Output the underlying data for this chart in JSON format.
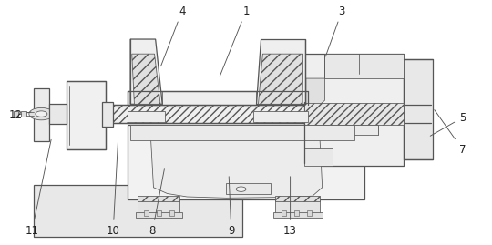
{
  "bg_color": "#ffffff",
  "line_color": "#555555",
  "fig_width": 5.4,
  "fig_height": 2.69,
  "dpi": 100,
  "labels": {
    "1": [
      0.5,
      0.955,
      0.445,
      0.68
    ],
    "3": [
      0.695,
      0.955,
      0.66,
      0.76
    ],
    "4": [
      0.37,
      0.955,
      0.325,
      0.72
    ],
    "5": [
      0.94,
      0.52,
      0.87,
      0.44
    ],
    "7": [
      0.94,
      0.39,
      0.88,
      0.56
    ],
    "8": [
      0.31,
      0.058,
      0.335,
      0.32
    ],
    "9": [
      0.47,
      0.058,
      0.465,
      0.29
    ],
    "10": [
      0.23,
      0.058,
      0.24,
      0.43
    ],
    "11": [
      0.065,
      0.058,
      0.105,
      0.44
    ],
    "12": [
      0.032,
      0.53,
      0.068,
      0.545
    ],
    "13": [
      0.59,
      0.058,
      0.59,
      0.29
    ]
  }
}
